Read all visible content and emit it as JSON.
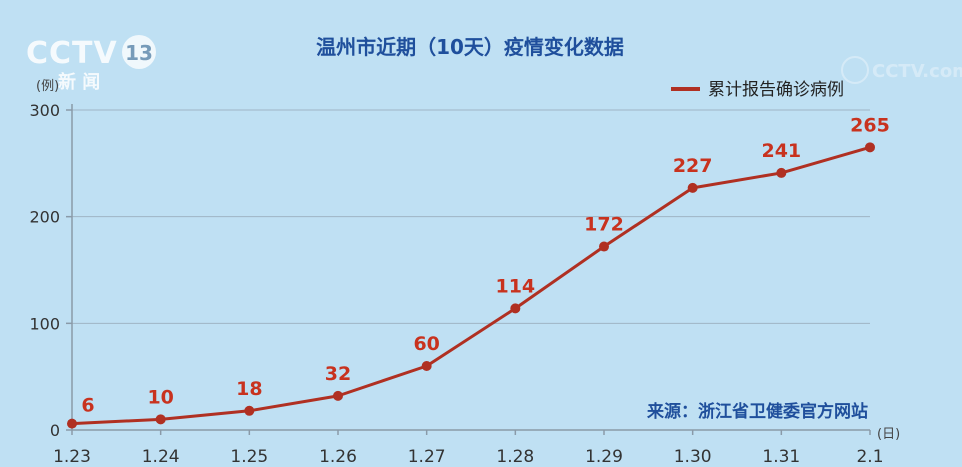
{
  "logo": {
    "brand": "CCTV13",
    "subtitle": "新 闻"
  },
  "watermark": "CCTV.com",
  "chart_data": {
    "type": "line",
    "title": "温州市近期（10天）疫情变化数据",
    "y_unit": "(例)",
    "x_unit": "(日)",
    "categories": [
      "1.23",
      "1.24",
      "1.25",
      "1.26",
      "1.27",
      "1.28",
      "1.29",
      "1.30",
      "1.31",
      "2.1"
    ],
    "series": [
      {
        "name": "累计报告确诊病例",
        "values": [
          6,
          10,
          18,
          32,
          60,
          114,
          172,
          227,
          241,
          265
        ],
        "color": "#b03022"
      }
    ],
    "ylim": [
      0,
      300
    ],
    "yticks": [
      0,
      100,
      200,
      300
    ],
    "grid": true,
    "legend_position": "top-right",
    "source": "来源：浙江省卫健委官方网站"
  }
}
